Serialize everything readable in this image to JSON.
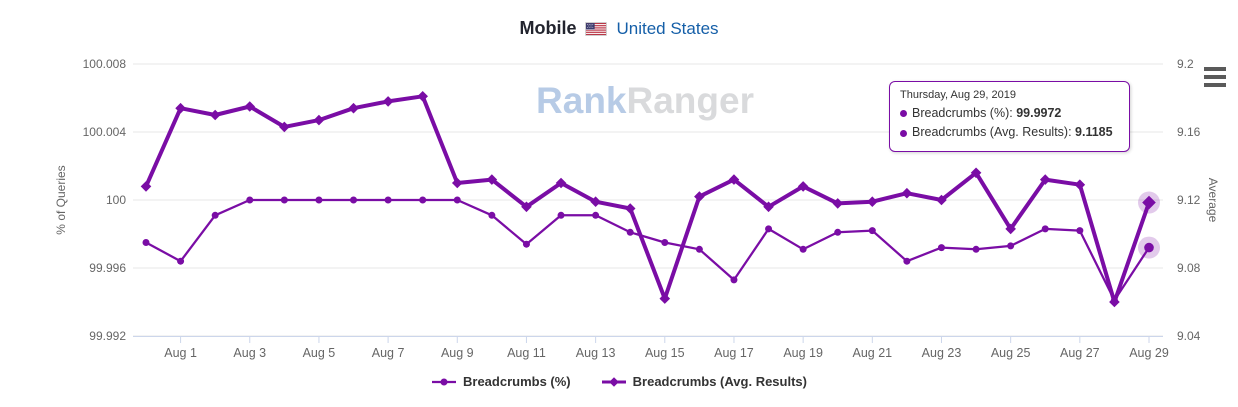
{
  "header": {
    "title": "Mobile",
    "country": "United States",
    "flag": "us-flag-icon"
  },
  "watermark": {
    "part1": "Rank",
    "part2": "Ranger"
  },
  "menu_icon": "hamburger-menu-icon",
  "colors": {
    "series": "#7a0da5",
    "halo": "rgba(122,13,165,0.22)",
    "grid": "#e7e7e7",
    "axis_line": "#ccd6eb",
    "tick_text": "#666666",
    "title_dark": "#22242e",
    "country_blue": "#155fa8"
  },
  "tooltip": {
    "date": "Thursday, Aug 29, 2019",
    "rows": [
      {
        "label": "Breadcrumbs (%)",
        "value": "99.9972"
      },
      {
        "label": "Breadcrumbs (Avg. Results)",
        "value": "9.1185"
      }
    ]
  },
  "chart_data": {
    "type": "line",
    "title": "Mobile United States",
    "x": [
      "Jul 31",
      "Aug 1",
      "Aug 2",
      "Aug 3",
      "Aug 4",
      "Aug 5",
      "Aug 6",
      "Aug 7",
      "Aug 8",
      "Aug 9",
      "Aug 10",
      "Aug 11",
      "Aug 12",
      "Aug 13",
      "Aug 14",
      "Aug 15",
      "Aug 16",
      "Aug 17",
      "Aug 18",
      "Aug 19",
      "Aug 20",
      "Aug 21",
      "Aug 22",
      "Aug 23",
      "Aug 24",
      "Aug 25",
      "Aug 26",
      "Aug 27",
      "Aug 28",
      "Aug 29"
    ],
    "x_tick_indices": [
      1,
      3,
      5,
      7,
      9,
      11,
      13,
      15,
      17,
      19,
      21,
      23,
      25,
      27,
      29
    ],
    "series": [
      {
        "key": "breadcrumbs-pct",
        "name": "Breadcrumbs (%)",
        "axis": "left",
        "marker": "circle",
        "line_width": 2.25,
        "values": [
          99.9975,
          99.9964,
          99.9991,
          100.0,
          100.0,
          100.0,
          100.0,
          100.0,
          100.0,
          100.0,
          99.9991,
          99.9974,
          99.9991,
          99.9991,
          99.9981,
          99.9975,
          99.9971,
          99.9953,
          99.9983,
          99.9971,
          99.9981,
          99.9982,
          99.9964,
          99.9972,
          99.9971,
          99.9973,
          99.9983,
          99.9982,
          99.9941,
          99.9972
        ]
      },
      {
        "key": "breadcrumbs-avg",
        "name": "Breadcrumbs (Avg. Results)",
        "axis": "right",
        "marker": "diamond",
        "line_width": 4,
        "values": [
          9.128,
          9.174,
          9.17,
          9.175,
          9.163,
          9.167,
          9.174,
          9.178,
          9.181,
          9.13,
          9.132,
          9.116,
          9.13,
          9.119,
          9.115,
          9.062,
          9.122,
          9.132,
          9.116,
          9.128,
          9.118,
          9.119,
          9.124,
          9.12,
          9.136,
          9.103,
          9.132,
          9.129,
          9.06,
          9.1185
        ]
      }
    ],
    "y_left": {
      "title": "% of Queries",
      "range": [
        99.992,
        100.008
      ],
      "ticks": [
        100.008,
        100.004,
        100,
        99.996,
        99.992
      ],
      "tick_labels": [
        "100.008",
        "100.004",
        "100",
        "99.996",
        "99.992"
      ]
    },
    "y_right": {
      "title": "Average",
      "range": [
        9.04,
        9.2
      ],
      "ticks": [
        9.2,
        9.16,
        9.12,
        9.08,
        9.04
      ],
      "tick_labels": [
        "9.2",
        "9.16",
        "9.12",
        "9.08",
        "9.04"
      ]
    },
    "grid": true,
    "legend_position": "bottom",
    "highlighted_index": 29
  }
}
